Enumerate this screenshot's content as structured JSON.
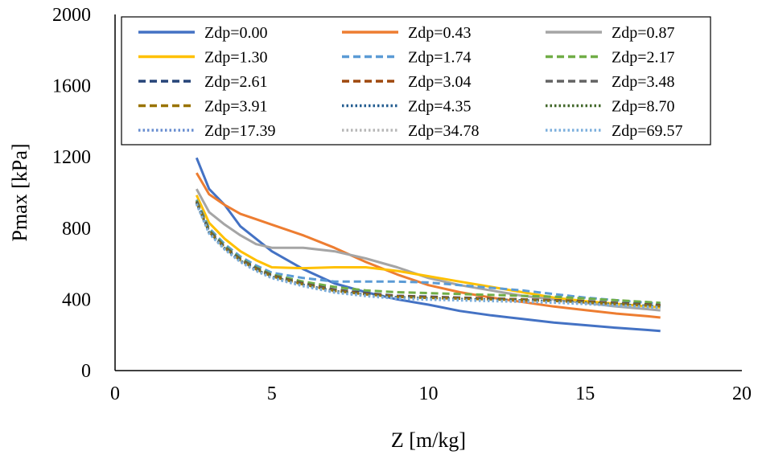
{
  "chart_data": {
    "type": "line",
    "title": "",
    "xlabel": "Z [m/kg]",
    "ylabel": "Pmax [kPa]",
    "xlim": [
      0,
      20
    ],
    "ylim": [
      0,
      2000
    ],
    "xticks": [
      0,
      5,
      10,
      15,
      20
    ],
    "yticks": [
      0,
      400,
      800,
      1200,
      1600,
      2000
    ],
    "x_tick_labels": [
      "0",
      "5",
      "10",
      "15",
      "20"
    ],
    "y_tick_labels": [
      "0",
      "400",
      "800",
      "1200",
      "1600",
      "2000"
    ],
    "grid": false,
    "legend_position": "top-inside",
    "legend_columns": 3,
    "series": [
      {
        "name": "Zdp=0.00",
        "color": "#4472C4",
        "dash": "solid",
        "x": [
          2.6,
          3.0,
          3.5,
          4.0,
          4.5,
          5.0,
          6.0,
          7.0,
          8.0,
          9.0,
          10.0,
          11.0,
          12.0,
          13.0,
          14.0,
          15.0,
          16.0,
          17.0,
          17.4
        ],
        "y": [
          1195,
          1020,
          930,
          810,
          740,
          670,
          570,
          490,
          440,
          400,
          370,
          335,
          310,
          290,
          270,
          255,
          240,
          228,
          222
        ]
      },
      {
        "name": "Zdp=0.43",
        "color": "#ED7D31",
        "dash": "solid",
        "x": [
          2.6,
          3.0,
          3.5,
          4.0,
          4.5,
          5.0,
          6.0,
          7.0,
          8.0,
          9.0,
          10.0,
          11.0,
          12.0,
          13.0,
          14.0,
          15.0,
          16.0,
          17.0,
          17.4
        ],
        "y": [
          1110,
          990,
          930,
          880,
          850,
          820,
          760,
          690,
          610,
          540,
          480,
          440,
          410,
          385,
          360,
          340,
          320,
          305,
          298
        ]
      },
      {
        "name": "Zdp=0.87",
        "color": "#A5A5A5",
        "dash": "solid",
        "x": [
          2.6,
          3.0,
          3.5,
          4.0,
          4.5,
          5.0,
          6.0,
          7.0,
          8.0,
          9.0,
          10.0,
          11.0,
          12.0,
          13.0,
          14.0,
          15.0,
          16.0,
          17.0,
          17.4
        ],
        "y": [
          1020,
          890,
          820,
          760,
          710,
          690,
          690,
          670,
          630,
          580,
          520,
          480,
          450,
          420,
          400,
          380,
          360,
          345,
          338
        ]
      },
      {
        "name": "Zdp=1.30",
        "color": "#FFC000",
        "dash": "solid",
        "x": [
          2.6,
          3.0,
          3.5,
          4.0,
          4.5,
          5.0,
          6.0,
          7.0,
          8.0,
          9.0,
          10.0,
          11.0,
          12.0,
          13.0,
          14.0,
          15.0,
          16.0,
          17.0,
          17.4
        ],
        "y": [
          985,
          830,
          740,
          670,
          620,
          580,
          575,
          580,
          580,
          560,
          530,
          500,
          470,
          440,
          410,
          390,
          375,
          360,
          355
        ]
      },
      {
        "name": "Zdp=1.74",
        "color": "#5B9BD5",
        "dash": "dash",
        "x": [
          2.6,
          3.0,
          3.5,
          4.0,
          4.5,
          5.0,
          6.0,
          7.0,
          8.0,
          9.0,
          10.0,
          11.0,
          12.0,
          13.0,
          14.0,
          15.0,
          16.0,
          17.0,
          17.4
        ],
        "y": [
          960,
          800,
          710,
          640,
          590,
          550,
          520,
          500,
          500,
          500,
          495,
          480,
          465,
          450,
          430,
          410,
          395,
          380,
          375
        ]
      },
      {
        "name": "Zdp=2.17",
        "color": "#70AD47",
        "dash": "dash",
        "x": [
          2.6,
          3.0,
          3.5,
          4.0,
          4.5,
          5.0,
          6.0,
          7.0,
          8.0,
          9.0,
          10.0,
          11.0,
          12.0,
          13.0,
          14.0,
          15.0,
          16.0,
          17.0,
          17.4
        ],
        "y": [
          955,
          790,
          700,
          630,
          580,
          540,
          500,
          470,
          450,
          440,
          435,
          430,
          425,
          420,
          415,
          405,
          395,
          385,
          380
        ]
      },
      {
        "name": "Zdp=2.61",
        "color": "#264478",
        "dash": "dash",
        "x": [
          2.6,
          3.0,
          3.5,
          4.0,
          4.5,
          5.0,
          6.0,
          7.0,
          8.0,
          9.0,
          10.0,
          11.0,
          12.0,
          13.0,
          14.0,
          15.0,
          16.0,
          17.0,
          17.4
        ],
        "y": [
          950,
          785,
          695,
          625,
          575,
          535,
          490,
          455,
          435,
          420,
          415,
          410,
          405,
          400,
          395,
          390,
          380,
          372,
          368
        ]
      },
      {
        "name": "Zdp=3.04",
        "color": "#9E480E",
        "dash": "dash",
        "x": [
          2.6,
          3.0,
          3.5,
          4.0,
          4.5,
          5.0,
          6.0,
          7.0,
          8.0,
          9.0,
          10.0,
          11.0,
          12.0,
          13.0,
          14.0,
          15.0,
          16.0,
          17.0,
          17.4
        ],
        "y": [
          948,
          783,
          693,
          623,
          573,
          533,
          488,
          452,
          432,
          418,
          412,
          408,
          404,
          400,
          395,
          388,
          378,
          370,
          366
        ]
      },
      {
        "name": "Zdp=3.48",
        "color": "#636363",
        "dash": "dash",
        "x": [
          2.6,
          3.0,
          3.5,
          4.0,
          4.5,
          5.0,
          6.0,
          7.0,
          8.0,
          9.0,
          10.0,
          11.0,
          12.0,
          13.0,
          14.0,
          15.0,
          16.0,
          17.0,
          17.4
        ],
        "y": [
          946,
          781,
          691,
          621,
          571,
          531,
          486,
          450,
          430,
          416,
          410,
          406,
          402,
          398,
          393,
          386,
          376,
          368,
          364
        ]
      },
      {
        "name": "Zdp=3.91",
        "color": "#997300",
        "dash": "dash",
        "x": [
          2.6,
          3.0,
          3.5,
          4.0,
          4.5,
          5.0,
          6.0,
          7.0,
          8.0,
          9.0,
          10.0,
          11.0,
          12.0,
          13.0,
          14.0,
          15.0,
          16.0,
          17.0,
          17.4
        ],
        "y": [
          944,
          779,
          689,
          619,
          569,
          529,
          484,
          448,
          428,
          414,
          408,
          404,
          400,
          396,
          391,
          384,
          374,
          366,
          362
        ]
      },
      {
        "name": "Zdp=4.35",
        "color": "#255E91",
        "dash": "dot",
        "x": [
          2.6,
          3.0,
          3.5,
          4.0,
          4.5,
          5.0,
          6.0,
          7.0,
          8.0,
          9.0,
          10.0,
          11.0,
          12.0,
          13.0,
          14.0,
          15.0,
          16.0,
          17.0,
          17.4
        ],
        "y": [
          942,
          777,
          687,
          617,
          567,
          527,
          482,
          446,
          426,
          412,
          406,
          402,
          398,
          394,
          389,
          382,
          372,
          364,
          360
        ]
      },
      {
        "name": "Zdp=8.70",
        "color": "#43682B",
        "dash": "dot",
        "x": [
          2.6,
          3.0,
          3.5,
          4.0,
          4.5,
          5.0,
          6.0,
          7.0,
          8.0,
          9.0,
          10.0,
          11.0,
          12.0,
          13.0,
          14.0,
          15.0,
          16.0,
          17.0,
          17.4
        ],
        "y": [
          940,
          775,
          685,
          615,
          565,
          525,
          480,
          444,
          424,
          410,
          404,
          400,
          396,
          392,
          387,
          380,
          370,
          362,
          358
        ]
      },
      {
        "name": "Zdp=17.39",
        "color": "#698ED0",
        "dash": "dot",
        "x": [
          2.6,
          3.0,
          3.5,
          4.0,
          4.5,
          5.0,
          6.0,
          7.0,
          8.0,
          9.0,
          10.0,
          11.0,
          12.0,
          13.0,
          14.0,
          15.0,
          16.0,
          17.0,
          17.4
        ],
        "y": [
          938,
          773,
          683,
          613,
          563,
          523,
          478,
          442,
          422,
          408,
          402,
          398,
          394,
          390,
          385,
          378,
          368,
          360,
          356
        ]
      },
      {
        "name": "Zdp=34.78",
        "color": "#B7B7B7",
        "dash": "dot",
        "x": [
          2.6,
          3.0,
          3.5,
          4.0,
          4.5,
          5.0,
          6.0,
          7.0,
          8.0,
          9.0,
          10.0,
          11.0,
          12.0,
          13.0,
          14.0,
          15.0,
          16.0,
          17.0,
          17.4
        ],
        "y": [
          936,
          771,
          681,
          611,
          561,
          521,
          476,
          440,
          420,
          406,
          400,
          396,
          392,
          388,
          383,
          376,
          366,
          358,
          354
        ]
      },
      {
        "name": "Zdp=69.57",
        "color": "#7CAFDD",
        "dash": "dot",
        "x": [
          2.6,
          3.0,
          3.5,
          4.0,
          4.5,
          5.0,
          6.0,
          7.0,
          8.0,
          9.0,
          10.0,
          11.0,
          12.0,
          13.0,
          14.0,
          15.0,
          16.0,
          17.0,
          17.4
        ],
        "y": [
          934,
          769,
          679,
          609,
          559,
          519,
          474,
          438,
          418,
          404,
          398,
          394,
          390,
          386,
          381,
          374,
          364,
          356,
          352
        ]
      }
    ]
  }
}
